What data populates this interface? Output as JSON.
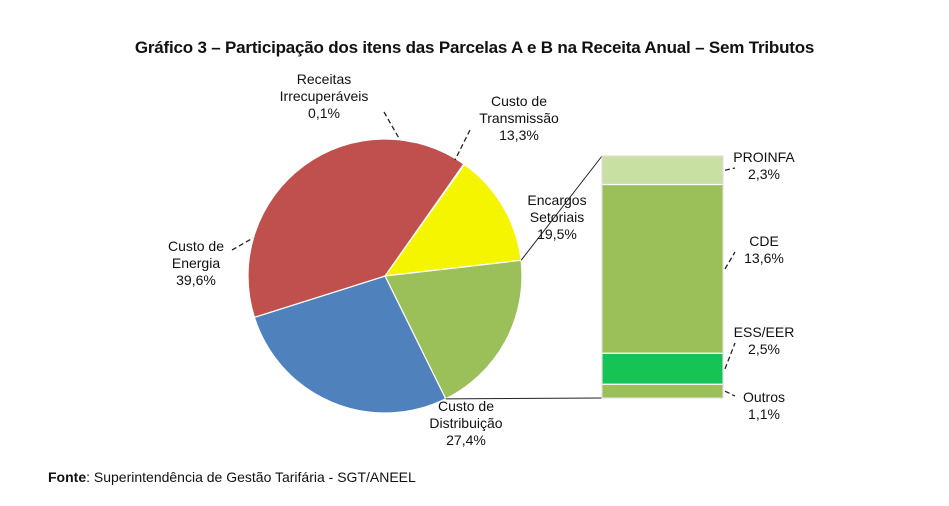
{
  "title": "Gráfico 3 – Participação dos itens das Parcelas A e B na Receita Anual – Sem Tributos",
  "source": {
    "prefix": "Fonte",
    "text": ": Superintendência de Gestão Tarifária - SGT/ANEEL"
  },
  "chart_data": [
    {
      "type": "pie",
      "slices": [
        {
          "label_lines": [
            "Receitas",
            "Irrecuperáveis"
          ],
          "value_label": "0,1%",
          "value": 0.1,
          "color": "#9e2a2a"
        },
        {
          "label_lines": [
            "Custo de",
            "Transmissão"
          ],
          "value_label": "13,3%",
          "value": 13.3,
          "color": "#f5f500"
        },
        {
          "label_lines": [
            "Encargos",
            "Setoriais"
          ],
          "value_label": "19,5%",
          "value": 19.5,
          "color": "#9bc05a"
        },
        {
          "label_lines": [
            "Custo de",
            "Distribuição"
          ],
          "value_label": "27,4%",
          "value": 27.4,
          "color": "#4f81bd"
        },
        {
          "label_lines": [
            "Custo de",
            "Energia"
          ],
          "value_label": "39,6%",
          "value": 39.6,
          "color": "#c0504d"
        }
      ]
    },
    {
      "type": "bar",
      "stacked": true,
      "breakdown_of": "Encargos Setoriais",
      "segments": [
        {
          "label": "PROINFA",
          "value_label": "2,3%",
          "value": 2.3,
          "color": "#c8e0a2"
        },
        {
          "label": "CDE",
          "value_label": "13,6%",
          "value": 13.6,
          "color": "#9bbf59"
        },
        {
          "label": "ESS/EER",
          "value_label": "2,5%",
          "value": 2.5,
          "color": "#16c456"
        },
        {
          "label": "Outros",
          "value_label": "1,1%",
          "value": 1.1,
          "color": "#9bbf59"
        }
      ]
    }
  ]
}
